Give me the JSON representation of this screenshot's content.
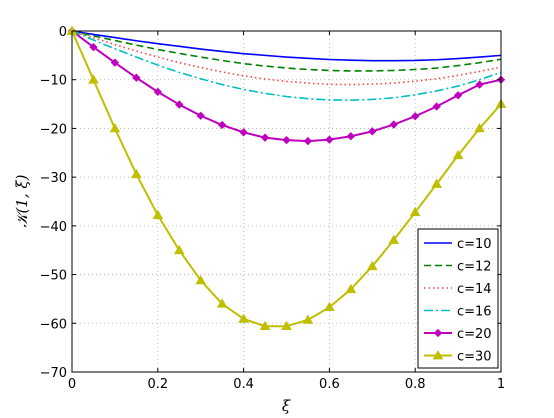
{
  "chart_data": {
    "type": "line",
    "title": "",
    "xlabel": "ξ",
    "ylabel": "𝒦(1, ξ)",
    "xlim": [
      0,
      1
    ],
    "ylim": [
      -70,
      0
    ],
    "xticks": [
      0,
      0.2,
      0.4,
      0.6,
      0.8,
      1
    ],
    "xtick_labels": [
      "0",
      "0.2",
      "0.4",
      "0.6",
      "0.8",
      "1"
    ],
    "yticks": [
      0,
      -10,
      -20,
      -30,
      -40,
      -50,
      -60,
      -70
    ],
    "ytick_labels": [
      "0",
      "−10",
      "−20",
      "−30",
      "−40",
      "−50",
      "−60",
      "−70"
    ],
    "grid": true,
    "legend_position": "lower-right",
    "x": [
      0,
      0.05,
      0.1,
      0.15,
      0.2,
      0.25,
      0.3,
      0.35,
      0.4,
      0.45,
      0.5,
      0.55,
      0.6,
      0.65,
      0.7,
      0.75,
      0.8,
      0.85,
      0.9,
      0.95,
      1
    ],
    "series": [
      {
        "name": "c=10",
        "color": "#0000ff",
        "dash": "",
        "marker": "none",
        "values": [
          0,
          -0.7,
          -1.35,
          -2.0,
          -2.6,
          -3.15,
          -3.7,
          -4.2,
          -4.65,
          -5.0,
          -5.35,
          -5.6,
          -5.85,
          -6.0,
          -6.1,
          -6.1,
          -6.05,
          -5.9,
          -5.65,
          -5.35,
          -5.0
        ]
      },
      {
        "name": "c=12",
        "color": "#008000",
        "dash": "7,4",
        "marker": "none",
        "values": [
          0,
          -1.0,
          -1.95,
          -2.9,
          -3.8,
          -4.6,
          -5.35,
          -6.05,
          -6.7,
          -7.2,
          -7.6,
          -7.9,
          -8.1,
          -8.2,
          -8.2,
          -8.1,
          -7.9,
          -7.6,
          -7.1,
          -6.5,
          -5.8
        ]
      },
      {
        "name": "c=14",
        "color": "#ff4040",
        "dash": "1.5,3",
        "marker": "none",
        "values": [
          0,
          -1.4,
          -2.8,
          -4.1,
          -5.35,
          -6.5,
          -7.5,
          -8.4,
          -9.2,
          -9.85,
          -10.35,
          -10.7,
          -10.95,
          -11.0,
          -10.9,
          -10.7,
          -10.3,
          -9.8,
          -9.1,
          -8.3,
          -7.4
        ]
      },
      {
        "name": "c=16",
        "color": "#00bfbf",
        "dash": "9,3,2,3",
        "marker": "none",
        "values": [
          0,
          -1.85,
          -3.65,
          -5.35,
          -7.0,
          -8.5,
          -9.8,
          -11.0,
          -12.0,
          -12.8,
          -13.45,
          -13.9,
          -14.15,
          -14.2,
          -14.05,
          -13.7,
          -13.1,
          -12.3,
          -11.3,
          -10.0,
          -8.5
        ]
      },
      {
        "name": "c=20",
        "color": "#bf00bf",
        "dash": "",
        "marker": "diamond",
        "values": [
          0,
          -3.3,
          -6.5,
          -9.6,
          -12.5,
          -15.1,
          -17.4,
          -19.3,
          -20.8,
          -21.9,
          -22.4,
          -22.6,
          -22.3,
          -21.6,
          -20.6,
          -19.2,
          -17.5,
          -15.5,
          -13.2,
          -11.0,
          -10.0
        ]
      },
      {
        "name": "c=30",
        "color": "#bfbf00",
        "dash": "",
        "marker": "triangle",
        "values": [
          0,
          -10.0,
          -20.0,
          -29.4,
          -37.8,
          -45.0,
          -51.2,
          -56.0,
          -59.1,
          -60.6,
          -60.6,
          -59.3,
          -56.7,
          -53.0,
          -48.3,
          -42.9,
          -37.2,
          -31.4,
          -25.5,
          -20.0,
          -15.0
        ]
      }
    ]
  }
}
